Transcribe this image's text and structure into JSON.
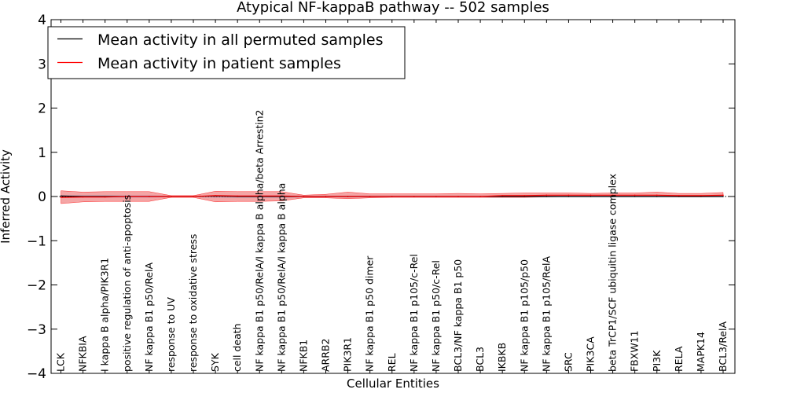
{
  "chart_data": {
    "type": "line",
    "title": "Atypical NF-kappaB pathway -- 502 samples",
    "xlabel": "Cellular Entities",
    "ylabel": "Inferred Activity",
    "ylim": [
      -4,
      4
    ],
    "yticks": [
      -4,
      -3,
      -2,
      -1,
      0,
      1,
      2,
      3,
      4
    ],
    "ytick_labels": [
      "−4",
      "−3",
      "−2",
      "−1",
      "0",
      "1",
      "2",
      "3",
      "4"
    ],
    "categories": [
      "LCK",
      "NFKBIA",
      "I kappa B alpha/PIK3R1",
      "positive regulation of anti-apoptosis",
      "NF kappa B1 p50/RelA",
      "response to UV",
      "response to oxidative stress",
      "SYK",
      "cell death",
      "NF kappa B1 p50/RelA/I kappa B alpha/beta Arrestin2",
      "NF kappa B1 p50/RelA/I kappa B alpha",
      "NFKB1",
      "ARRB2",
      "PIK3R1",
      "NF kappa B1 p50 dimer",
      "REL",
      "NF kappa B1 p105/c-Rel",
      "NF kappa B1 p50/c-Rel",
      "BCL3/NF kappa B1 p50",
      "BCL3",
      "IKBKB",
      "NF kappa B1 p105/p50",
      "NF kappa B1 p105/RelA",
      "SRC",
      "PIK3CA",
      "beta TrCP1/SCF ubiquitin ligase complex",
      "FBXW11",
      "PI3K",
      "RELA",
      "MAPK14",
      "BCL3/RelA"
    ],
    "series": [
      {
        "name": "Mean activity in all permuted samples",
        "color": "#000000",
        "values": [
          0.01,
          0.0,
          0.0,
          0.0,
          0.0,
          0.0,
          0.0,
          0.01,
          0.0,
          0.0,
          0.0,
          0.0,
          0.0,
          0.0,
          0.0,
          0.0,
          0.0,
          0.0,
          0.0,
          0.0,
          0.0,
          0.0,
          0.0,
          0.0,
          0.0,
          0.0,
          0.0,
          0.0,
          0.0,
          0.0,
          0.0
        ],
        "band_low": [
          -0.03,
          -0.03,
          -0.03,
          -0.03,
          -0.03,
          -0.01,
          -0.01,
          -0.03,
          -0.03,
          -0.03,
          -0.03,
          -0.02,
          -0.02,
          -0.02,
          -0.02,
          -0.02,
          -0.02,
          -0.02,
          -0.02,
          -0.02,
          -0.02,
          -0.02,
          -0.02,
          -0.02,
          -0.02,
          -0.02,
          -0.02,
          -0.02,
          -0.02,
          -0.02,
          -0.02
        ],
        "band_high": [
          0.03,
          0.03,
          0.03,
          0.03,
          0.03,
          0.01,
          0.01,
          0.03,
          0.03,
          0.03,
          0.03,
          0.02,
          0.02,
          0.02,
          0.02,
          0.02,
          0.02,
          0.02,
          0.02,
          0.02,
          0.02,
          0.02,
          0.02,
          0.02,
          0.02,
          0.02,
          0.02,
          0.02,
          0.02,
          0.02,
          0.02
        ]
      },
      {
        "name": "Mean activity in patient samples",
        "color": "#ff0000",
        "band_color": "#f08080",
        "values": [
          -0.02,
          -0.01,
          -0.01,
          0.0,
          0.0,
          0.0,
          0.0,
          0.02,
          0.01,
          0.01,
          0.01,
          0.0,
          0.0,
          0.0,
          0.0,
          0.0,
          0.0,
          0.0,
          0.0,
          0.0,
          0.02,
          0.02,
          0.03,
          0.03,
          0.03,
          0.03,
          0.03,
          0.03,
          0.02,
          0.02,
          0.03
        ],
        "band_low": [
          -0.16,
          -0.12,
          -0.11,
          -0.11,
          -0.11,
          -0.02,
          -0.02,
          -0.12,
          -0.11,
          -0.11,
          -0.1,
          -0.03,
          -0.03,
          -0.05,
          -0.03,
          -0.02,
          -0.02,
          -0.02,
          -0.02,
          -0.02,
          -0.02,
          -0.02,
          -0.01,
          0.0,
          0.0,
          0.0,
          0.0,
          0.0,
          0.0,
          0.0,
          0.0
        ],
        "band_high": [
          0.13,
          0.1,
          0.11,
          0.11,
          0.11,
          0.02,
          0.02,
          0.12,
          0.11,
          0.11,
          0.11,
          0.03,
          0.05,
          0.1,
          0.06,
          0.06,
          0.06,
          0.06,
          0.07,
          0.06,
          0.07,
          0.08,
          0.08,
          0.08,
          0.07,
          0.08,
          0.08,
          0.1,
          0.07,
          0.07,
          0.09
        ]
      }
    ],
    "legend_position": "top-left",
    "zero_line": "dotted"
  }
}
